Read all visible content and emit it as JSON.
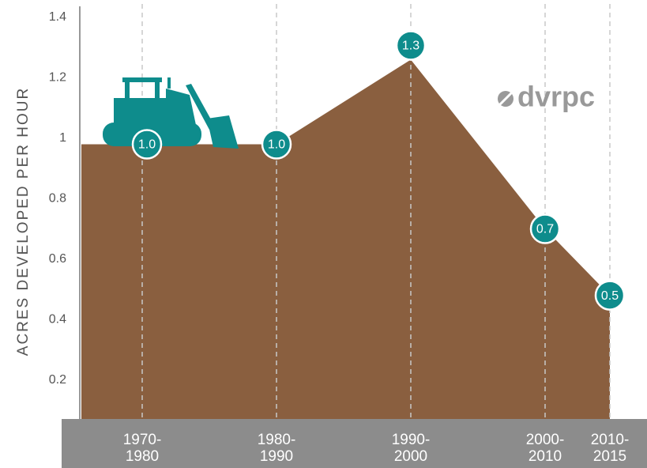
{
  "chart_data": {
    "type": "area",
    "y_label": "ACRES DEVELOPED PER HOUR",
    "logo": "dvrpc",
    "categories": [
      "1970-1980",
      "1980-1990",
      "1990-2000",
      "2000-2010",
      "2010-2015"
    ],
    "values": [
      0.98,
      0.98,
      1.26,
      0.7,
      0.48
    ],
    "value_labels": [
      "1.0",
      "1.0",
      "1.3",
      "0.7",
      "0.5"
    ],
    "color": "#8a5f3f",
    "marker_color": "#0e8c8c",
    "ylim": [
      0,
      1.4
    ],
    "yticks": [
      0.2,
      0.4,
      0.6,
      0.8,
      1.0,
      1.2,
      1.4
    ]
  }
}
